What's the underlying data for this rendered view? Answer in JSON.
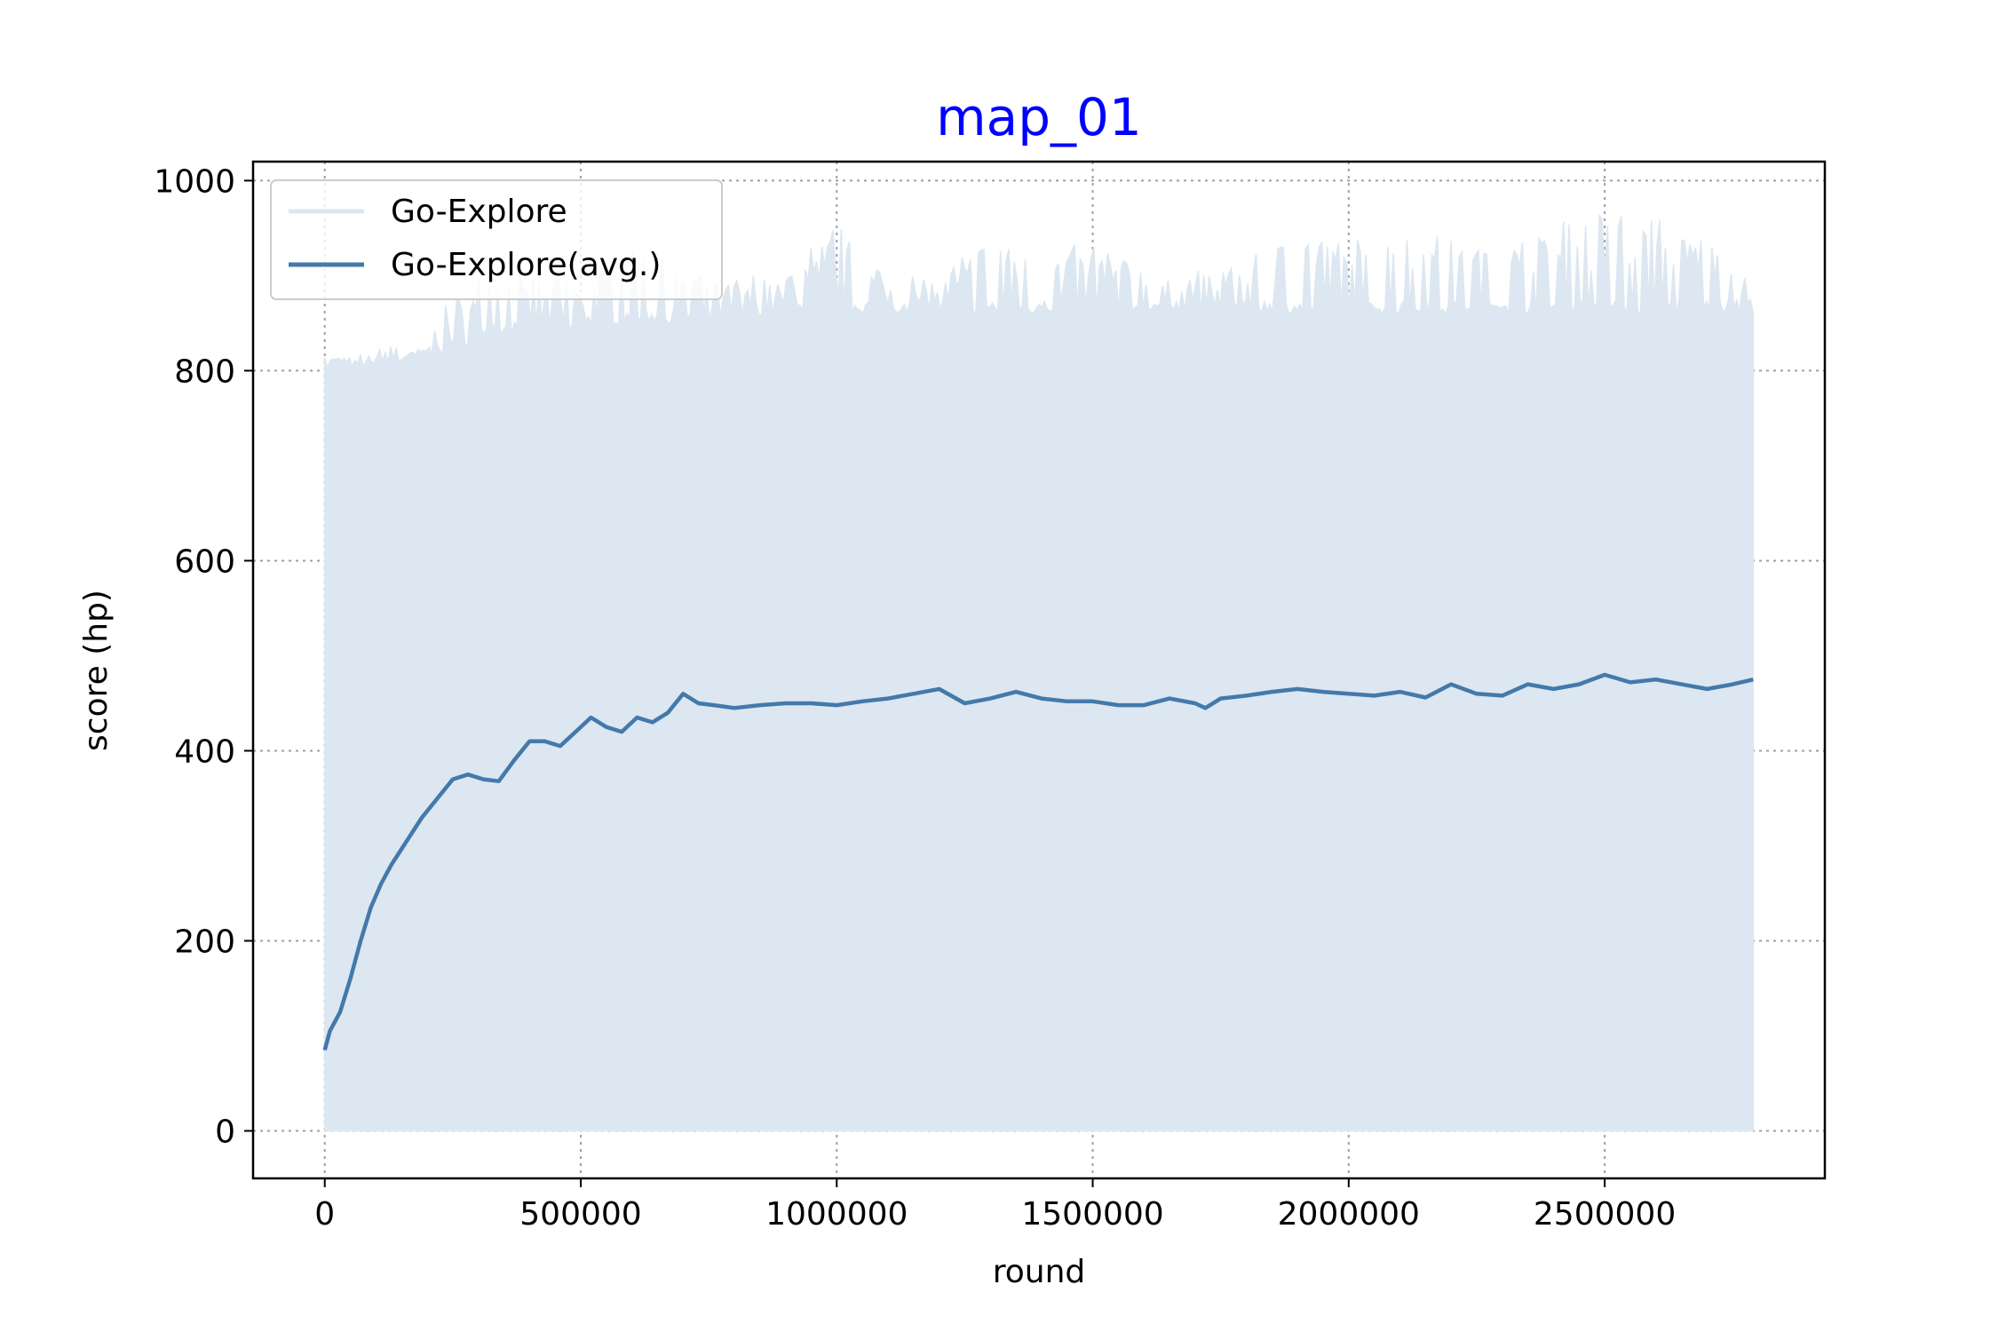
{
  "chart_data": {
    "type": "area",
    "title": "map_01",
    "xlabel": "round",
    "ylabel": "score (hp)",
    "xlim": [
      -140000,
      2930000
    ],
    "ylim": [
      -50,
      1020
    ],
    "x_ticks": [
      0,
      500000,
      1000000,
      1500000,
      2000000,
      2500000
    ],
    "x_tick_labels": [
      "0",
      "500000",
      "1000000",
      "1500000",
      "2000000",
      "2500000"
    ],
    "y_ticks": [
      0,
      200,
      400,
      600,
      800,
      1000
    ],
    "y_tick_labels": [
      "0",
      "200",
      "400",
      "600",
      "800",
      "1000"
    ],
    "grid": true,
    "legend_position": "top-left",
    "colors": {
      "raw": "#dce7f1",
      "avg": "#4479aa",
      "title": "#0000ff",
      "grid": "#9aa0a6"
    },
    "series": [
      {
        "name": "Go-Explore",
        "style": "filled",
        "x": [
          0,
          100000,
          200000,
          250000,
          300000,
          400000,
          500000,
          600000,
          700000,
          800000,
          900000,
          1000000,
          1100000,
          1200000,
          1300000,
          1400000,
          1500000,
          1600000,
          1700000,
          1800000,
          1900000,
          2000000,
          2100000,
          2200000,
          2300000,
          2400000,
          2500000,
          2600000,
          2700000,
          2790000
        ],
        "baseline": [
          800,
          805,
          810,
          820,
          830,
          840,
          845,
          850,
          850,
          855,
          860,
          860,
          860,
          860,
          860,
          860,
          860,
          860,
          860,
          860,
          860,
          860,
          860,
          860,
          860,
          860,
          860,
          860,
          860,
          860
        ],
        "peak": [
          815,
          825,
          830,
          890,
          900,
          905,
          900,
          935,
          910,
          900,
          905,
          955,
          900,
          900,
          950,
          920,
          940,
          910,
          905,
          930,
          950,
          935,
          950,
          940,
          935,
          955,
          965,
          960,
          950,
          890
        ]
      },
      {
        "name": "Go-Explore(avg.)",
        "style": "line",
        "x": [
          0,
          10000,
          30000,
          50000,
          70000,
          90000,
          110000,
          130000,
          160000,
          190000,
          220000,
          250000,
          280000,
          310000,
          340000,
          370000,
          400000,
          430000,
          460000,
          490000,
          520000,
          550000,
          580000,
          610000,
          640000,
          670000,
          700000,
          730000,
          760000,
          800000,
          850000,
          900000,
          950000,
          1000000,
          1050000,
          1100000,
          1150000,
          1200000,
          1250000,
          1300000,
          1350000,
          1400000,
          1450000,
          1500000,
          1550000,
          1600000,
          1650000,
          1700000,
          1720000,
          1750000,
          1800000,
          1850000,
          1900000,
          1950000,
          2000000,
          2050000,
          2100000,
          2150000,
          2200000,
          2250000,
          2300000,
          2350000,
          2400000,
          2450000,
          2500000,
          2550000,
          2600000,
          2650000,
          2700000,
          2750000,
          2790000
        ],
        "y": [
          85,
          105,
          125,
          160,
          200,
          235,
          260,
          280,
          305,
          330,
          350,
          370,
          375,
          370,
          368,
          390,
          410,
          410,
          405,
          420,
          435,
          425,
          420,
          435,
          430,
          440,
          460,
          450,
          448,
          445,
          448,
          450,
          450,
          448,
          452,
          455,
          460,
          465,
          450,
          455,
          462,
          455,
          452,
          452,
          448,
          448,
          455,
          450,
          445,
          455,
          458,
          462,
          465,
          462,
          460,
          458,
          462,
          456,
          470,
          460,
          458,
          470,
          465,
          470,
          480,
          472,
          475,
          470,
          465,
          470,
          475
        ]
      }
    ]
  }
}
